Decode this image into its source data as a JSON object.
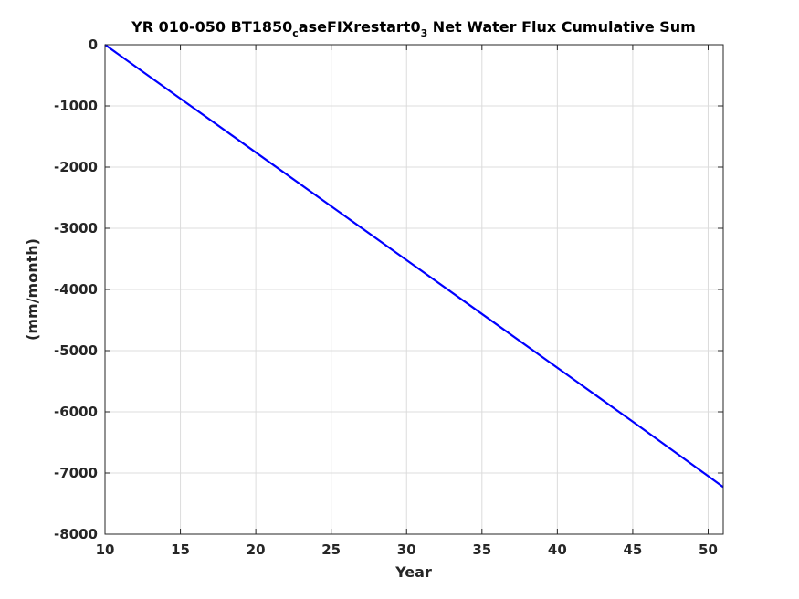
{
  "chart_data": {
    "type": "line",
    "title": {
      "part1": "YR 010-050 BT1850",
      "sub1": "c",
      "part2": "aseFIXrestart0",
      "sub2": "3",
      "part3": " Net Water Flux Cumulative Sum"
    },
    "xlabel": "Year",
    "ylabel": "(mm/month)",
    "xlim": [
      10,
      51
    ],
    "ylim": [
      -8000,
      0
    ],
    "xticks": [
      10,
      15,
      20,
      25,
      30,
      35,
      40,
      45,
      50
    ],
    "yticks": [
      0,
      -1000,
      -2000,
      -3000,
      -4000,
      -5000,
      -6000,
      -7000,
      -8000
    ],
    "xtick_labels": [
      "10",
      "15",
      "20",
      "25",
      "30",
      "35",
      "40",
      "45",
      "50"
    ],
    "ytick_labels": [
      "0",
      "-1000",
      "-2000",
      "-3000",
      "-4000",
      "-5000",
      "-6000",
      "-7000",
      "-8000"
    ],
    "grid": true,
    "series": [
      {
        "color": "#0000ff",
        "x": [
          10,
          15,
          20,
          25,
          30,
          35,
          40,
          45,
          50,
          51
        ],
        "y": [
          0,
          -880,
          -1760,
          -2640,
          -3520,
          -4400,
          -5280,
          -6160,
          -7050,
          -7230
        ]
      }
    ]
  }
}
